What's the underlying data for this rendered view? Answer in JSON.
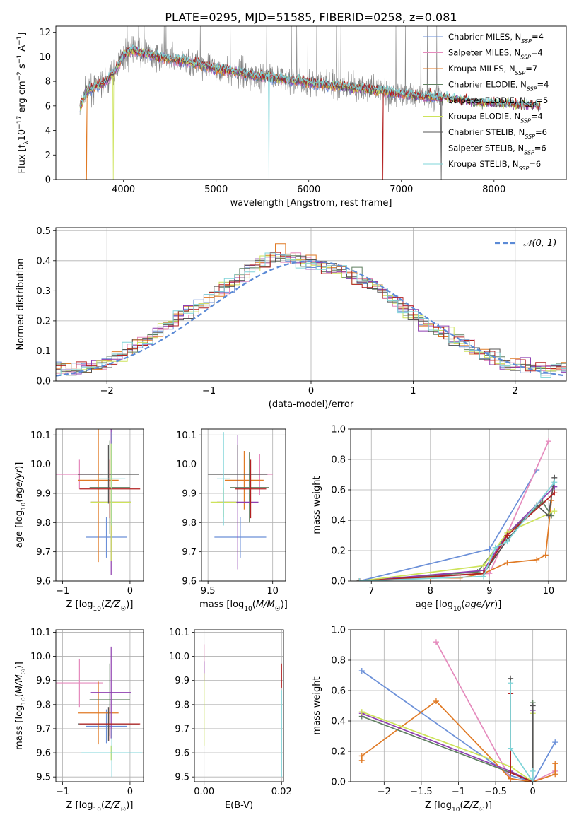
{
  "figure_title": "PLATE=0295, MJD=51585, FIBERID=0258, z=0.081",
  "colors": {
    "Chabrier MILES": "#6a8fd8",
    "Salpeter MILES": "#e58bbd",
    "Kroupa MILES": "#e07a25",
    "Chabrier ELODIE": "#5f7f60",
    "Salpeter ELODIE": "#8e3fb0",
    "Kroupa ELODIE": "#cde35a",
    "Chabrier STELIB": "#555555",
    "Salpeter STELIB": "#b32020",
    "Kroupa STELIB": "#7fd4d8"
  },
  "chart_data": [
    {
      "type": "line",
      "title": "PLATE=0295, MJD=51585, FIBERID=0258, z=0.081",
      "xlabel": "wavelength [Angstrom, rest frame]",
      "ylabel": "Flux [f_λ 10^-17 erg cm^-2 s^-1 A^-1]",
      "xlim": [
        3270,
        8780
      ],
      "ylim": [
        0,
        12.5
      ],
      "xticks": [
        4000,
        5000,
        6000,
        7000,
        8000
      ],
      "yticks": [
        0,
        2,
        4,
        6,
        8,
        10,
        12
      ],
      "legend_position": "top-right",
      "legend": [
        {
          "name": "Chabrier MILES",
          "nssp": "4"
        },
        {
          "name": "Salpeter MILES",
          "nssp": "4"
        },
        {
          "name": "Kroupa MILES",
          "nssp": "7"
        },
        {
          "name": "Chabrier ELODIE",
          "nssp": "4"
        },
        {
          "name": "Salpeter ELODIE",
          "nssp": "5"
        },
        {
          "name": "Kroupa ELODIE",
          "nssp": "4"
        },
        {
          "name": "Chabrier STELIB",
          "nssp": "6"
        },
        {
          "name": "Salpeter STELIB",
          "nssp": "6"
        },
        {
          "name": "Kroupa STELIB",
          "nssp": "6"
        }
      ],
      "data_trend": {
        "x": [
          3530,
          3600,
          3700,
          3800,
          3900,
          4000,
          4100,
          4200,
          4300,
          4400,
          4500,
          4600,
          4700,
          4800,
          4900,
          5000,
          5200,
          5400,
          5600,
          5800,
          6000,
          6200,
          6400,
          6600,
          6800,
          7000,
          7200,
          7400,
          7600,
          7800,
          8000,
          8200,
          8500
        ],
        "y": [
          5.8,
          7.2,
          7.6,
          7.9,
          8.7,
          10.2,
          10.6,
          10.3,
          10.1,
          10.0,
          9.8,
          9.7,
          9.6,
          9.4,
          9.2,
          9.0,
          8.8,
          8.5,
          8.3,
          8.1,
          7.9,
          7.7,
          7.5,
          7.4,
          7.2,
          7.0,
          6.8,
          6.7,
          6.5,
          6.3,
          6.2,
          6.1,
          6.0
        ]
      }
    },
    {
      "type": "line",
      "xlabel": "(data-model)/error",
      "ylabel": "Normed distribution",
      "xlim": [
        -2.5,
        2.5
      ],
      "ylim": [
        0,
        0.51
      ],
      "xticks": [
        -2,
        -1,
        0,
        1,
        2
      ],
      "yticks": [
        0.0,
        0.1,
        0.2,
        0.3,
        0.4,
        0.5
      ],
      "legend_label": "𝒩(0, 1)",
      "legend_position": "top-right",
      "histogram_centers": [
        -2.3,
        -2.1,
        -1.9,
        -1.7,
        -1.5,
        -1.3,
        -1.1,
        -0.9,
        -0.7,
        -0.5,
        -0.3,
        -0.1,
        0.1,
        0.3,
        0.5,
        0.7,
        0.9,
        1.1,
        1.3,
        1.5,
        1.7,
        1.9,
        2.1,
        2.3
      ],
      "histogram_values": [
        0.04,
        0.05,
        0.08,
        0.12,
        0.16,
        0.21,
        0.25,
        0.3,
        0.35,
        0.39,
        0.42,
        0.4,
        0.38,
        0.36,
        0.34,
        0.3,
        0.25,
        0.2,
        0.16,
        0.12,
        0.09,
        0.06,
        0.05,
        0.04
      ]
    },
    {
      "type": "scatter",
      "xlabel": "Z [log10(Z/Z☉)]",
      "ylabel": "age  [log10(age/yr)]",
      "xlim": [
        -1.1,
        0.2
      ],
      "ylim": [
        9.6,
        10.12
      ],
      "xticks": [
        -1,
        0
      ],
      "yticks": [
        9.6,
        9.7,
        9.8,
        9.9,
        10.0,
        10.1
      ],
      "points": [
        {
          "series": "Chabrier MILES",
          "x": -0.35,
          "y": 9.75,
          "xerr": 0.3,
          "yerr": 0.07
        },
        {
          "series": "Salpeter MILES",
          "x": -0.75,
          "y": 9.965,
          "xerr": 0.35,
          "yerr": 0.05
        },
        {
          "series": "Kroupa MILES",
          "x": -0.47,
          "y": 9.945,
          "xerr": 0.3,
          "yerr": 0.28
        },
        {
          "series": "Chabrier ELODIE",
          "x": -0.3,
          "y": 9.92,
          "xerr": 0.3,
          "yerr": 0.16
        },
        {
          "series": "Salpeter ELODIE",
          "x": -0.28,
          "y": 9.87,
          "xerr": 0.3,
          "yerr": 0.25
        },
        {
          "series": "Kroupa ELODIE",
          "x": -0.28,
          "y": 9.87,
          "xerr": 0.3,
          "yerr": 0.2
        },
        {
          "series": "Chabrier STELIB",
          "x": -0.32,
          "y": 9.965,
          "xerr": 0.45,
          "yerr": 0.1
        },
        {
          "series": "Salpeter STELIB",
          "x": -0.3,
          "y": 9.915,
          "xerr": 0.45,
          "yerr": 0.1
        },
        {
          "series": "Kroupa STELIB",
          "x": -0.27,
          "y": 9.95,
          "xerr": 0.2,
          "yerr": 0.16
        }
      ]
    },
    {
      "type": "scatter",
      "xlabel": "mass [log10(M/M☉)]",
      "ylabel": "",
      "xlim": [
        9.45,
        10.1
      ],
      "ylim": [
        9.6,
        10.12
      ],
      "xticks": [
        9.5,
        10.0
      ],
      "yticks": [
        9.6,
        9.7,
        9.8,
        9.9,
        10.0,
        10.1
      ],
      "points": [
        {
          "series": "Chabrier MILES",
          "x": 9.75,
          "y": 9.75,
          "xerr": 0.2,
          "yerr": 0.07
        },
        {
          "series": "Salpeter MILES",
          "x": 9.9,
          "y": 9.965,
          "xerr": 0.1,
          "yerr": 0.07
        },
        {
          "series": "Kroupa MILES",
          "x": 9.78,
          "y": 9.945,
          "xerr": 0.15,
          "yerr": 0.1
        },
        {
          "series": "Chabrier ELODIE",
          "x": 9.82,
          "y": 9.92,
          "xerr": 0.15,
          "yerr": 0.12
        },
        {
          "series": "Salpeter ELODIE",
          "x": 9.73,
          "y": 9.87,
          "xerr": 0.16,
          "yerr": 0.23
        },
        {
          "series": "Kroupa ELODIE",
          "x": 9.62,
          "y": 9.87,
          "xerr": 0.1,
          "yerr": 0.05
        },
        {
          "series": "Chabrier STELIB",
          "x": 9.73,
          "y": 9.965,
          "xerr": 0.23,
          "yerr": 0.1
        },
        {
          "series": "Salpeter STELIB",
          "x": 9.83,
          "y": 9.915,
          "xerr": 0.12,
          "yerr": 0.1
        },
        {
          "series": "Kroupa STELIB",
          "x": 9.62,
          "y": 9.95,
          "xerr": 0.05,
          "yerr": 0.16
        }
      ]
    },
    {
      "type": "line",
      "xlabel": "age  [log10(age/yr)]",
      "ylabel": "mass weight",
      "xlim": [
        6.65,
        10.3
      ],
      "ylim": [
        0,
        1.0
      ],
      "xticks": [
        7,
        8,
        9,
        10
      ],
      "yticks": [
        0.0,
        0.2,
        0.4,
        0.6,
        0.8,
        1.0
      ],
      "series": [
        {
          "name": "Chabrier MILES",
          "x": [
            6.8,
            9.0,
            9.8
          ],
          "y": [
            0.0,
            0.21,
            0.73
          ]
        },
        {
          "name": "Salpeter MILES",
          "x": [
            6.8,
            9.0,
            10.0
          ],
          "y": [
            0.0,
            0.05,
            0.92
          ]
        },
        {
          "name": "Kroupa MILES",
          "x": [
            6.8,
            8.0,
            8.5,
            8.9,
            9.3,
            9.8,
            9.95,
            10.05
          ],
          "y": [
            0.0,
            0.02,
            0.02,
            0.05,
            0.12,
            0.14,
            0.17,
            0.53
          ]
        },
        {
          "name": "Chabrier ELODIE",
          "x": [
            6.8,
            8.8,
            9.3,
            9.9,
            10.05
          ],
          "y": [
            0.0,
            0.06,
            0.31,
            0.52,
            0.43
          ]
        },
        {
          "name": "Salpeter ELODIE",
          "x": [
            6.8,
            8.9,
            9.3,
            10.1
          ],
          "y": [
            0.0,
            0.07,
            0.31,
            0.62
          ]
        },
        {
          "name": "Kroupa ELODIE",
          "x": [
            6.8,
            8.9,
            9.3,
            10.1
          ],
          "y": [
            0.0,
            0.1,
            0.32,
            0.46
          ]
        },
        {
          "name": "Chabrier STELIB",
          "x": [
            6.8,
            8.9,
            9.3,
            9.8,
            10.0,
            10.1
          ],
          "y": [
            0.0,
            0.05,
            0.27,
            0.5,
            0.43,
            0.68
          ]
        },
        {
          "name": "Salpeter STELIB",
          "x": [
            6.8,
            8.9,
            9.3,
            10.1
          ],
          "y": [
            0.0,
            0.05,
            0.3,
            0.58
          ]
        },
        {
          "name": "Kroupa STELIB",
          "x": [
            6.8,
            8.9,
            9.1,
            9.3,
            10.1
          ],
          "y": [
            0.0,
            0.03,
            0.22,
            0.26,
            0.65
          ]
        }
      ]
    },
    {
      "type": "scatter",
      "xlabel": "Z [log10(Z/Z☉)]",
      "ylabel": "mass [log10(M/M☉)]",
      "xlim": [
        -1.1,
        0.2
      ],
      "ylim": [
        9.48,
        10.11
      ],
      "xticks": [
        -1,
        0
      ],
      "yticks": [
        9.5,
        9.6,
        9.7,
        9.8,
        9.9,
        10.0,
        10.1
      ],
      "points": [
        {
          "series": "Chabrier MILES",
          "x": -0.35,
          "y": 9.71,
          "xerr": 0.3,
          "yerr": 0.07
        },
        {
          "series": "Salpeter MILES",
          "x": -0.75,
          "y": 9.89,
          "xerr": 0.35,
          "yerr": 0.1
        },
        {
          "series": "Kroupa MILES",
          "x": -0.47,
          "y": 9.765,
          "xerr": 0.3,
          "yerr": 0.13
        },
        {
          "series": "Chabrier ELODIE",
          "x": -0.3,
          "y": 9.82,
          "xerr": 0.3,
          "yerr": 0.15
        },
        {
          "series": "Salpeter ELODIE",
          "x": -0.28,
          "y": 9.85,
          "xerr": 0.3,
          "yerr": 0.19
        },
        {
          "series": "Kroupa ELODIE",
          "x": -0.28,
          "y": 9.6,
          "xerr": 0.2,
          "yerr": 0.03
        },
        {
          "series": "Chabrier STELIB",
          "x": -0.32,
          "y": 9.72,
          "xerr": 0.45,
          "yerr": 0.07
        },
        {
          "series": "Salpeter STELIB",
          "x": -0.3,
          "y": 9.72,
          "xerr": 0.45,
          "yerr": 0.07
        },
        {
          "series": "Kroupa STELIB",
          "x": -0.27,
          "y": 9.6,
          "xerr": 0.45,
          "yerr": 0.1
        }
      ]
    },
    {
      "type": "scatter",
      "xlabel": "E(B-V)",
      "ylabel": "",
      "xlim": [
        -0.0025,
        0.0205
      ],
      "ylim": [
        9.48,
        10.11
      ],
      "xticks": [
        0.0,
        0.02
      ],
      "xticklabels": [
        "0.00",
        "0.02"
      ],
      "yticks": [
        9.5,
        9.6,
        9.7,
        9.8,
        9.9,
        10.0,
        10.1
      ],
      "points": [
        {
          "series": "Salpeter MILES",
          "x": 0.0,
          "y": 9.99,
          "yerr": 0.06
        },
        {
          "series": "Salpeter ELODIE",
          "x": 0.0,
          "y": 9.94,
          "yerr": 0.04
        },
        {
          "series": "Kroupa ELODIE",
          "x": 0.0,
          "y": 9.78,
          "yerr": 0.15
        },
        {
          "series": "Salpeter STELIB",
          "x": 0.02,
          "y": 9.92,
          "yerr": 0.05
        },
        {
          "series": "Kroupa STELIB",
          "x": 0.02,
          "y": 9.68,
          "yerr": 0.18
        }
      ]
    },
    {
      "type": "line",
      "xlabel": "Z [log10(Z/Z☉)]",
      "ylabel": "mass weight",
      "xlim": [
        -2.45,
        0.45
      ],
      "ylim": [
        0,
        1.0
      ],
      "xticks": [
        -2.0,
        -1.5,
        -1.0,
        -0.5,
        0.0
      ],
      "yticks": [
        0.0,
        0.2,
        0.4,
        0.6,
        0.8,
        1.0
      ],
      "series": [
        {
          "name": "Chabrier MILES",
          "x": [
            -2.3,
            -0.3,
            0.0,
            0.3
          ],
          "y": [
            0.73,
            0.04,
            0.0,
            0.26
          ]
        },
        {
          "name": "Salpeter MILES",
          "x": [
            -1.3,
            -0.3,
            0.0,
            0.3
          ],
          "y": [
            0.92,
            0.02,
            0.0,
            0.07
          ]
        },
        {
          "name": "Kroupa MILES",
          "x": [
            -2.3,
            -2.3,
            -1.3,
            -0.3,
            0.0,
            0.3,
            0.3
          ],
          "y": [
            0.14,
            0.17,
            0.53,
            0.02,
            0.0,
            0.05,
            0.12
          ]
        },
        {
          "name": "Chabrier ELODIE",
          "x": [
            -2.3,
            -0.3,
            0.0,
            0.0
          ],
          "y": [
            0.43,
            0.06,
            0.0,
            0.52
          ]
        },
        {
          "name": "Salpeter ELODIE",
          "x": [
            -2.3,
            -0.3,
            0.0,
            0.0
          ],
          "y": [
            0.45,
            0.07,
            0.0,
            0.47
          ]
        },
        {
          "name": "Kroupa ELODIE",
          "x": [
            -2.3,
            -0.3,
            0.0,
            0.0
          ],
          "y": [
            0.46,
            0.1,
            0.0,
            0.45
          ]
        },
        {
          "name": "Chabrier STELIB",
          "x": [
            -0.3,
            -0.3,
            0.0,
            0.0
          ],
          "y": [
            0.68,
            0.06,
            0.0,
            0.5
          ]
        },
        {
          "name": "Salpeter STELIB",
          "x": [
            -0.3,
            -0.3,
            0.0
          ],
          "y": [
            0.58,
            0.06,
            0.0
          ]
        },
        {
          "name": "Kroupa STELIB",
          "x": [
            -0.3,
            -0.3,
            0.0,
            0.0
          ],
          "y": [
            0.65,
            0.22,
            0.0,
            0.07
          ]
        }
      ]
    }
  ]
}
